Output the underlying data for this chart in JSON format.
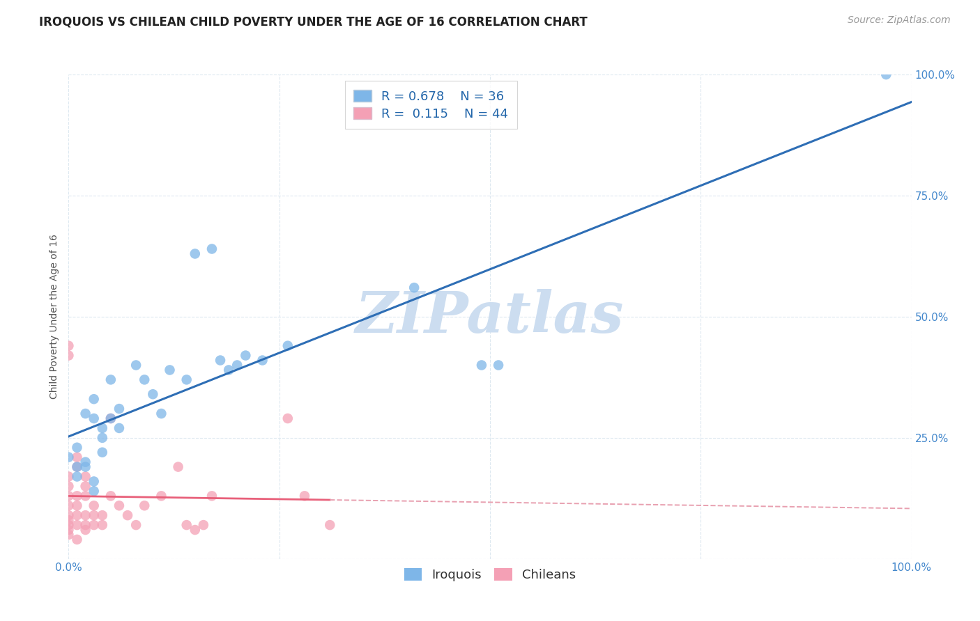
{
  "title": "IROQUOIS VS CHILEAN CHILD POVERTY UNDER THE AGE OF 16 CORRELATION CHART",
  "source": "Source: ZipAtlas.com",
  "ylabel": "Child Poverty Under the Age of 16",
  "xlim": [
    0,
    1.0
  ],
  "ylim": [
    0,
    1.0
  ],
  "xticks": [
    0.0,
    0.25,
    0.5,
    0.75,
    1.0
  ],
  "xticklabels": [
    "0.0%",
    "",
    "",
    "",
    "100.0%"
  ],
  "yticks": [
    0.25,
    0.5,
    0.75,
    1.0
  ],
  "yticklabels": [
    "25.0%",
    "50.0%",
    "75.0%",
    "100.0%"
  ],
  "iroquois_color": "#7eb6e8",
  "chilean_color": "#f4a0b5",
  "line_iroquois_color": "#2e6eb5",
  "line_chilean_color": "#e8607a",
  "line_chilean_dash_color": "#e8a0b0",
  "watermark": "ZIPatlas",
  "watermark_color": "#ccddf0",
  "background_color": "#ffffff",
  "grid_color": "#dde8f0",
  "iroquois_points": [
    [
      0.0,
      0.21
    ],
    [
      0.01,
      0.23
    ],
    [
      0.01,
      0.19
    ],
    [
      0.01,
      0.17
    ],
    [
      0.02,
      0.2
    ],
    [
      0.02,
      0.19
    ],
    [
      0.02,
      0.3
    ],
    [
      0.03,
      0.29
    ],
    [
      0.03,
      0.33
    ],
    [
      0.03,
      0.16
    ],
    [
      0.03,
      0.14
    ],
    [
      0.04,
      0.27
    ],
    [
      0.04,
      0.25
    ],
    [
      0.04,
      0.22
    ],
    [
      0.05,
      0.37
    ],
    [
      0.05,
      0.29
    ],
    [
      0.06,
      0.31
    ],
    [
      0.06,
      0.27
    ],
    [
      0.08,
      0.4
    ],
    [
      0.09,
      0.37
    ],
    [
      0.1,
      0.34
    ],
    [
      0.11,
      0.3
    ],
    [
      0.12,
      0.39
    ],
    [
      0.14,
      0.37
    ],
    [
      0.15,
      0.63
    ],
    [
      0.17,
      0.64
    ],
    [
      0.18,
      0.41
    ],
    [
      0.19,
      0.39
    ],
    [
      0.2,
      0.4
    ],
    [
      0.21,
      0.42
    ],
    [
      0.23,
      0.41
    ],
    [
      0.26,
      0.44
    ],
    [
      0.41,
      0.56
    ],
    [
      0.49,
      0.4
    ],
    [
      0.51,
      0.4
    ],
    [
      0.97,
      1.0
    ]
  ],
  "chilean_points": [
    [
      0.0,
      0.09
    ],
    [
      0.0,
      0.07
    ],
    [
      0.0,
      0.06
    ],
    [
      0.0,
      0.11
    ],
    [
      0.0,
      0.13
    ],
    [
      0.0,
      0.05
    ],
    [
      0.0,
      0.08
    ],
    [
      0.0,
      0.17
    ],
    [
      0.0,
      0.15
    ],
    [
      0.0,
      0.42
    ],
    [
      0.0,
      0.44
    ],
    [
      0.01,
      0.11
    ],
    [
      0.01,
      0.09
    ],
    [
      0.01,
      0.07
    ],
    [
      0.01,
      0.13
    ],
    [
      0.01,
      0.04
    ],
    [
      0.01,
      0.19
    ],
    [
      0.01,
      0.21
    ],
    [
      0.02,
      0.17
    ],
    [
      0.02,
      0.15
    ],
    [
      0.02,
      0.13
    ],
    [
      0.02,
      0.09
    ],
    [
      0.02,
      0.07
    ],
    [
      0.02,
      0.06
    ],
    [
      0.03,
      0.09
    ],
    [
      0.03,
      0.07
    ],
    [
      0.03,
      0.11
    ],
    [
      0.04,
      0.09
    ],
    [
      0.04,
      0.07
    ],
    [
      0.05,
      0.13
    ],
    [
      0.05,
      0.29
    ],
    [
      0.06,
      0.11
    ],
    [
      0.07,
      0.09
    ],
    [
      0.08,
      0.07
    ],
    [
      0.09,
      0.11
    ],
    [
      0.11,
      0.13
    ],
    [
      0.13,
      0.19
    ],
    [
      0.14,
      0.07
    ],
    [
      0.16,
      0.07
    ],
    [
      0.17,
      0.13
    ],
    [
      0.26,
      0.29
    ],
    [
      0.28,
      0.13
    ],
    [
      0.31,
      0.07
    ],
    [
      0.15,
      0.06
    ]
  ],
  "title_fontsize": 12,
  "source_fontsize": 10,
  "axis_label_fontsize": 10,
  "tick_fontsize": 11,
  "legend_fontsize": 13
}
